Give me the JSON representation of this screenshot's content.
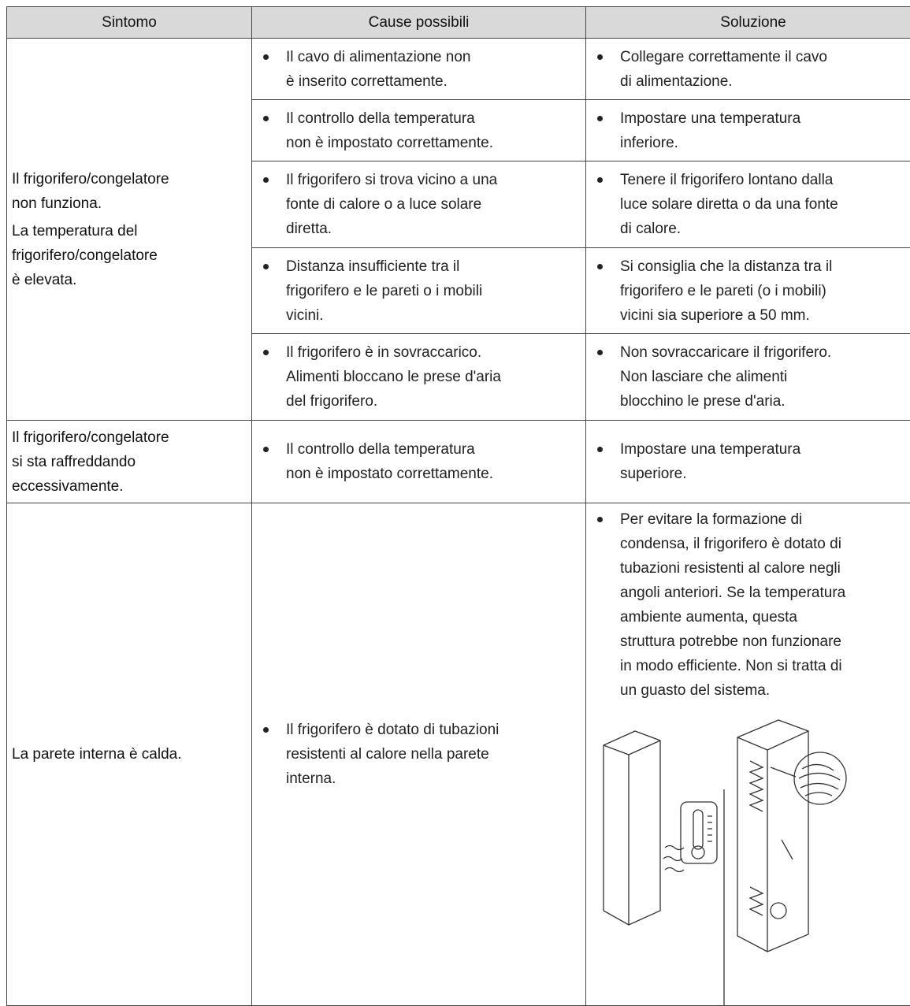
{
  "table": {
    "headers": [
      "Sintomo",
      "Cause possibili",
      "Soluzione"
    ],
    "rows": [
      {
        "symptom": [
          [
            "Il frigorifero/congelatore",
            "non funziona."
          ],
          [
            "La temperatura del",
            "frigorifero/congelatore",
            "è elevata."
          ]
        ],
        "items": [
          {
            "causes": [
              "Il cavo di alimentazione non",
              "è inserito correttamente."
            ],
            "solutions": [
              "Collegare correttamente il cavo",
              "di alimentazione."
            ]
          },
          {
            "causes": [
              "Il controllo della temperatura",
              "non è impostato correttamente."
            ],
            "solutions": [
              "Impostare una temperatura",
              "inferiore."
            ]
          },
          {
            "causes": [
              "Il frigorifero si trova vicino a una",
              "fonte di calore o a luce solare",
              "diretta."
            ],
            "solutions": [
              "Tenere il frigorifero lontano dalla",
              "luce solare diretta o da una fonte",
              "di calore."
            ]
          },
          {
            "causes": [
              "Distanza insufficiente tra il",
              "frigorifero e le pareti o i mobili",
              "vicini."
            ],
            "solutions": [
              "Si consiglia che la distanza tra il",
              "frigorifero e le pareti (o i mobili)",
              "vicini sia superiore a 50 mm."
            ]
          },
          {
            "causes": [
              "Il frigorifero è in sovraccarico.",
              "Alimenti bloccano le prese d'aria",
              "del frigorifero."
            ],
            "solutions": [
              "Non sovraccaricare il frigorifero.",
              "Non lasciare che alimenti",
              "blocchino le prese d'aria."
            ]
          }
        ]
      },
      {
        "symptom": [
          [
            "Il frigorifero/congelatore",
            "si sta raffreddando",
            "eccessivamente."
          ]
        ],
        "items": [
          {
            "causes": [
              "Il controllo della temperatura",
              "non è impostato correttamente."
            ],
            "solutions": [
              "Impostare una temperatura",
              "superiore."
            ]
          }
        ]
      },
      {
        "symptom": [
          [
            "La parete interna è calda."
          ]
        ],
        "items": [
          {
            "causes": [
              "Il frigorifero è dotato di tubazioni",
              "resistenti al calore nella parete",
              "interna."
            ],
            "solutions": [
              "Per evitare la formazione di",
              "condensa, il frigorifero è dotato di",
              "tubazioni resistenti al calore negli",
              "angoli anteriori. Se la temperatura",
              "ambiente aumenta, questa",
              "struttura potrebbe non funzionare",
              "in modo efficiente. Non si tratta di",
              "un guasto del sistema."
            ]
          }
        ]
      }
    ]
  }
}
